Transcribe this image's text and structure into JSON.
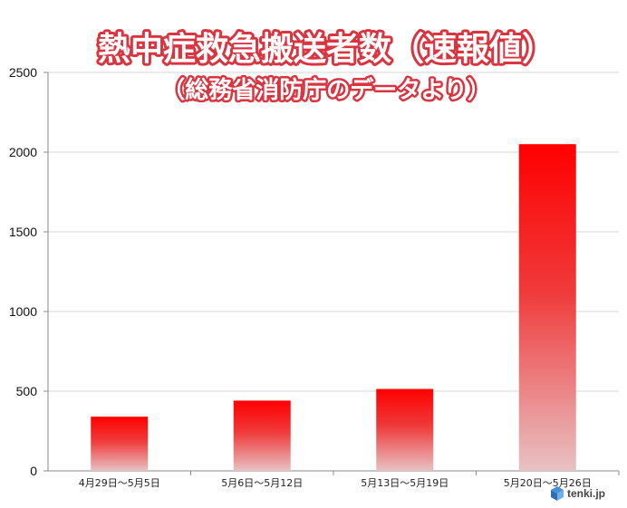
{
  "chart_data": {
    "type": "bar",
    "title": "熱中症救急搬送者数（速報値）",
    "subtitle": "（総務省消防庁のデータより）",
    "categories": [
      "4月29日～5月5日",
      "5月6日～5月12日",
      "5月13日～5月19日",
      "5月20日～5月26日"
    ],
    "values": [
      340,
      441,
      514,
      2050
    ],
    "y_ticks": [
      "0",
      "500",
      "1000",
      "1500",
      "2000",
      "2500"
    ],
    "ylim": [
      0,
      2500
    ],
    "xlabel": "",
    "ylabel": "",
    "grid": true,
    "legend": "none",
    "bar_color_top": "#ff0000",
    "bar_color_bottom": "#e8c2c4"
  },
  "watermark": {
    "text": "tenki.jp",
    "icon": "tenki-cube-icon"
  }
}
